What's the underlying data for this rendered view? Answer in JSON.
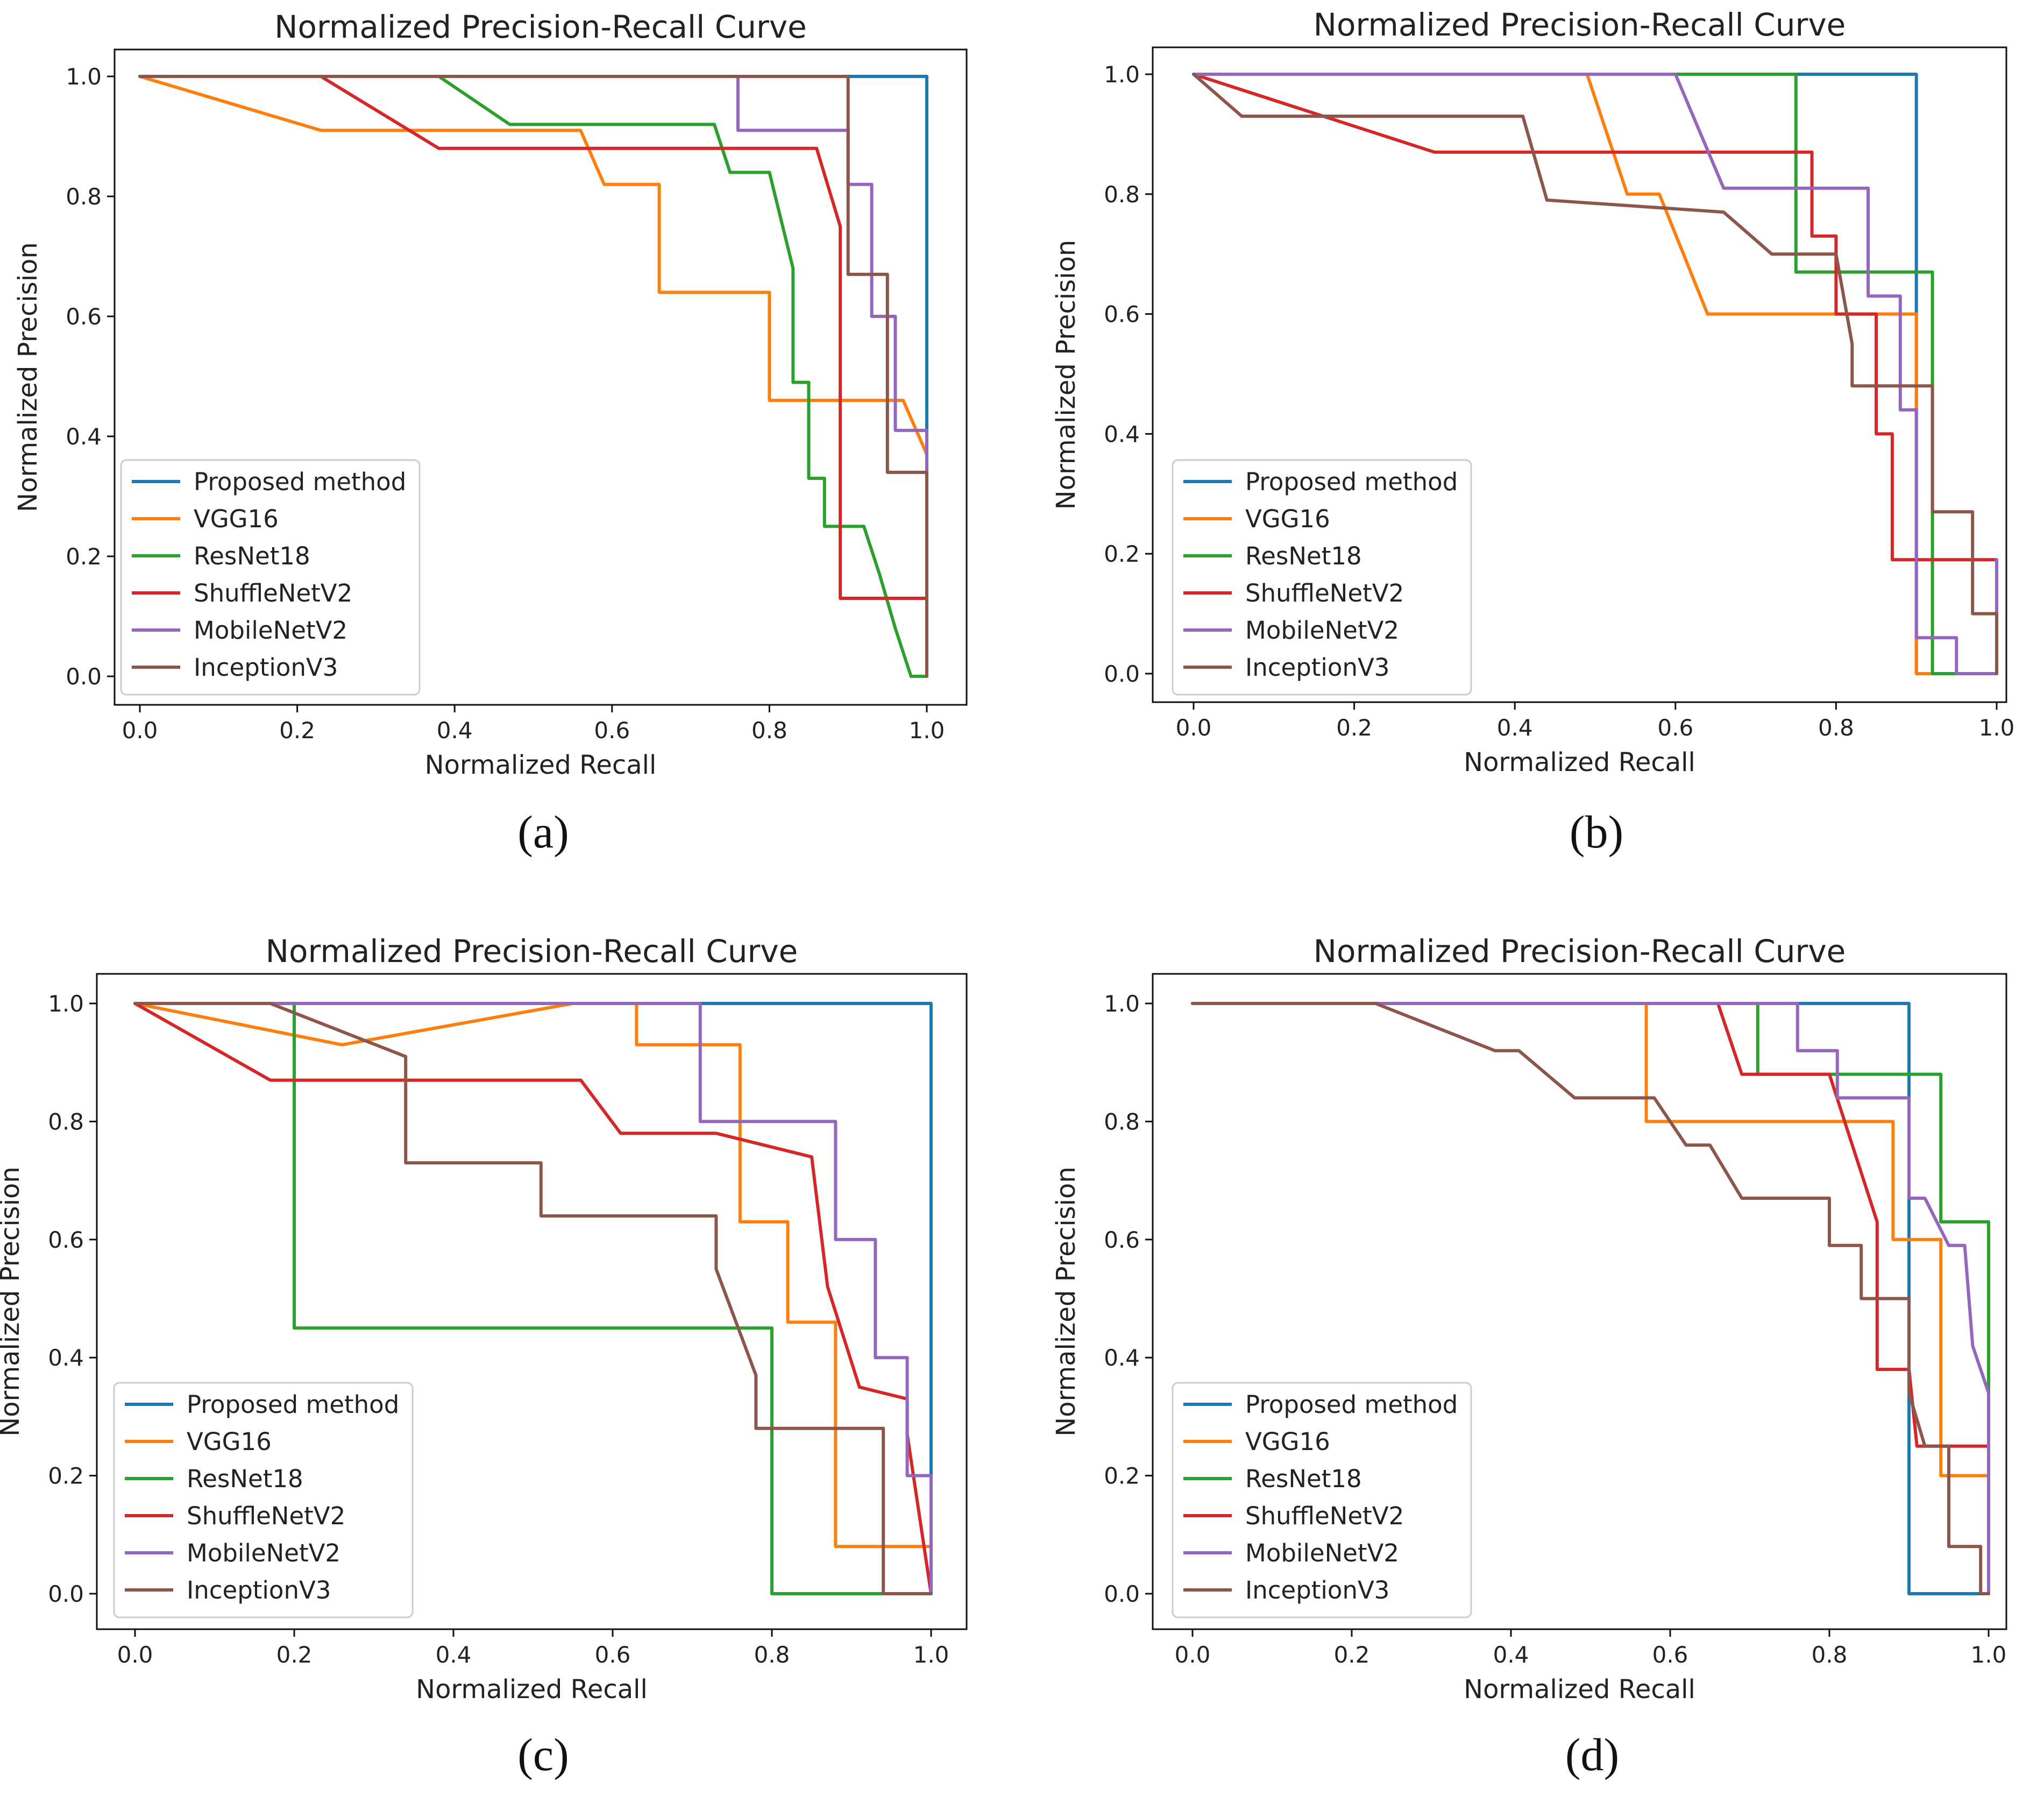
{
  "colors": {
    "Proposed method": "#1f77b4",
    "VGG16": "#ff7f0e",
    "ResNet18": "#2ca02c",
    "ShuffleNetV2": "#d62728",
    "MobileNetV2": "#9467bd",
    "InceptionV3": "#8c564b"
  },
  "chart_data": [
    {
      "type": "line",
      "caption": "(a)",
      "title": "Normalized Precision-Recall Curve",
      "xlabel": "Normalized Recall",
      "ylabel": "Normalized Precision",
      "xlim": [
        0,
        1
      ],
      "ylim": [
        0,
        1
      ],
      "xticks": [
        "0.0",
        "0.2",
        "0.4",
        "0.6",
        "0.8",
        "1.0"
      ],
      "yticks": [
        "0.0",
        "0.2",
        "0.4",
        "0.6",
        "0.8",
        "1.0"
      ],
      "legend": [
        "Proposed method",
        "VGG16",
        "ResNet18",
        "ShuffleNetV2",
        "MobileNetV2",
        "InceptionV3"
      ],
      "series": [
        {
          "name": "Proposed method",
          "x": [
            0,
            1,
            1
          ],
          "y": [
            1,
            1,
            0
          ]
        },
        {
          "name": "VGG16",
          "x": [
            0,
            0.23,
            0.56,
            0.59,
            0.66,
            0.66,
            0.8,
            0.8,
            0.97,
            1,
            1
          ],
          "y": [
            1,
            0.91,
            0.91,
            0.82,
            0.82,
            0.64,
            0.64,
            0.46,
            0.46,
            0.37,
            0
          ]
        },
        {
          "name": "ResNet18",
          "x": [
            0,
            0.38,
            0.47,
            0.73,
            0.75,
            0.8,
            0.83,
            0.83,
            0.85,
            0.85,
            0.87,
            0.87,
            0.92,
            0.94,
            0.94,
            0.96,
            0.96,
            0.98,
            1
          ],
          "y": [
            1,
            1,
            0.92,
            0.92,
            0.84,
            0.84,
            0.68,
            0.49,
            0.49,
            0.33,
            0.33,
            0.25,
            0.25,
            0.17,
            0.17,
            0.08,
            0.08,
            0,
            0
          ]
        },
        {
          "name": "ShuffleNetV2",
          "x": [
            0,
            0.23,
            0.38,
            0.86,
            0.89,
            0.89,
            1,
            1
          ],
          "y": [
            1,
            1,
            0.88,
            0.88,
            0.75,
            0.13,
            0.13,
            0
          ]
        },
        {
          "name": "MobileNetV2",
          "x": [
            0,
            0.76,
            0.76,
            0.9,
            0.9,
            0.93,
            0.93,
            0.96,
            0.96,
            1,
            1
          ],
          "y": [
            1,
            1,
            0.91,
            0.91,
            0.82,
            0.82,
            0.6,
            0.6,
            0.41,
            0.41,
            0
          ]
        },
        {
          "name": "InceptionV3",
          "x": [
            0,
            0.9,
            0.9,
            0.95,
            0.95,
            1,
            1
          ],
          "y": [
            1,
            1,
            0.67,
            0.67,
            0.34,
            0.34,
            0
          ]
        }
      ]
    },
    {
      "type": "line",
      "caption": "(b)",
      "title": "Normalized Precision-Recall Curve",
      "xlabel": "Normalized Recall",
      "ylabel": "Normalized Precision",
      "xlim": [
        0,
        1
      ],
      "ylim": [
        0,
        1
      ],
      "xticks": [
        "0.0",
        "0.2",
        "0.4",
        "0.6",
        "0.8",
        "1.0"
      ],
      "yticks": [
        "0.0",
        "0.2",
        "0.4",
        "0.6",
        "0.8",
        "1.0"
      ],
      "legend": [
        "Proposed method",
        "VGG16",
        "ResNet18",
        "ShuffleNetV2",
        "MobileNetV2",
        "InceptionV3"
      ],
      "series": [
        {
          "name": "Proposed method",
          "x": [
            0,
            0.9,
            0.9,
            1
          ],
          "y": [
            1,
            1,
            0,
            0
          ]
        },
        {
          "name": "VGG16",
          "x": [
            0,
            0.49,
            0.54,
            0.58,
            0.64,
            0.9,
            0.9,
            1
          ],
          "y": [
            1,
            1,
            0.8,
            0.8,
            0.6,
            0.6,
            0,
            0
          ]
        },
        {
          "name": "ResNet18",
          "x": [
            0,
            0.75,
            0.75,
            0.92,
            0.92,
            1,
            1
          ],
          "y": [
            1,
            1,
            0.67,
            0.67,
            0,
            0,
            0.19
          ]
        },
        {
          "name": "ShuffleNetV2",
          "x": [
            0,
            0.3,
            0.77,
            0.77,
            0.8,
            0.8,
            0.85,
            0.85,
            0.87,
            0.87,
            1,
            1
          ],
          "y": [
            1,
            0.87,
            0.87,
            0.73,
            0.73,
            0.6,
            0.6,
            0.4,
            0.4,
            0.19,
            0.19,
            0
          ]
        },
        {
          "name": "MobileNetV2",
          "x": [
            0,
            0.6,
            0.66,
            0.84,
            0.84,
            0.88,
            0.88,
            0.9,
            0.9,
            0.95,
            0.95,
            1,
            1
          ],
          "y": [
            1,
            1,
            0.81,
            0.81,
            0.63,
            0.63,
            0.44,
            0.44,
            0.06,
            0.06,
            0,
            0,
            0.19
          ]
        },
        {
          "name": "InceptionV3",
          "x": [
            0,
            0.06,
            0.41,
            0.44,
            0.66,
            0.72,
            0.8,
            0.82,
            0.82,
            0.92,
            0.92,
            0.97,
            0.97,
            1,
            1
          ],
          "y": [
            1,
            0.93,
            0.93,
            0.79,
            0.77,
            0.7,
            0.7,
            0.55,
            0.48,
            0.48,
            0.27,
            0.27,
            0.1,
            0.1,
            0
          ]
        }
      ]
    },
    {
      "type": "line",
      "caption": "(c)",
      "title": "Normalized Precision-Recall Curve",
      "xlabel": "Normalized Recall",
      "ylabel": "Normalized Precision",
      "xlim": [
        0,
        1
      ],
      "ylim": [
        0,
        1
      ],
      "xticks": [
        "0.0",
        "0.2",
        "0.4",
        "0.6",
        "0.8",
        "1.0"
      ],
      "yticks": [
        "0.0",
        "0.2",
        "0.4",
        "0.6",
        "0.8",
        "1.0"
      ],
      "legend": [
        "Proposed method",
        "VGG16",
        "ResNet18",
        "ShuffleNetV2",
        "MobileNetV2",
        "InceptionV3"
      ],
      "series": [
        {
          "name": "Proposed method",
          "x": [
            0,
            1,
            1
          ],
          "y": [
            1,
            1,
            0
          ]
        },
        {
          "name": "VGG16",
          "x": [
            0,
            0.26,
            0.55,
            0.63,
            0.63,
            0.76,
            0.76,
            0.82,
            0.82,
            0.88,
            0.88,
            1,
            1
          ],
          "y": [
            1,
            0.93,
            1,
            1,
            0.93,
            0.93,
            0.63,
            0.63,
            0.46,
            0.46,
            0.08,
            0.08,
            0
          ]
        },
        {
          "name": "ResNet18",
          "x": [
            0,
            0.2,
            0.2,
            0.8,
            0.8,
            1
          ],
          "y": [
            1,
            1,
            0.45,
            0.45,
            0,
            0
          ]
        },
        {
          "name": "ShuffleNetV2",
          "x": [
            0,
            0.17,
            0.56,
            0.61,
            0.73,
            0.85,
            0.87,
            0.91,
            0.97,
            0.97,
            1
          ],
          "y": [
            1,
            0.87,
            0.87,
            0.78,
            0.78,
            0.74,
            0.52,
            0.35,
            0.33,
            0.27,
            0
          ]
        },
        {
          "name": "MobileNetV2",
          "x": [
            0,
            0.71,
            0.71,
            0.88,
            0.88,
            0.93,
            0.93,
            0.97,
            0.97,
            1,
            1
          ],
          "y": [
            1,
            1,
            0.8,
            0.8,
            0.6,
            0.6,
            0.4,
            0.4,
            0.2,
            0.2,
            0
          ]
        },
        {
          "name": "InceptionV3",
          "x": [
            0,
            0.17,
            0.34,
            0.34,
            0.51,
            0.51,
            0.73,
            0.73,
            0.78,
            0.78,
            0.94,
            0.94,
            1
          ],
          "y": [
            1,
            1,
            0.91,
            0.73,
            0.73,
            0.64,
            0.64,
            0.55,
            0.37,
            0.28,
            0.28,
            0,
            0
          ]
        }
      ]
    },
    {
      "type": "line",
      "caption": "(d)",
      "title": "Normalized Precision-Recall Curve",
      "xlabel": "Normalized Recall",
      "ylabel": "Normalized Precision",
      "xlim": [
        0,
        1
      ],
      "ylim": [
        0,
        1
      ],
      "xticks": [
        "0.0",
        "0.2",
        "0.4",
        "0.6",
        "0.8",
        "1.0"
      ],
      "yticks": [
        "0.0",
        "0.2",
        "0.4",
        "0.6",
        "0.8",
        "1.0"
      ],
      "legend": [
        "Proposed method",
        "VGG16",
        "ResNet18",
        "ShuffleNetV2",
        "MobileNetV2",
        "InceptionV3"
      ],
      "series": [
        {
          "name": "Proposed method",
          "x": [
            0,
            0.9,
            0.9,
            1
          ],
          "y": [
            1,
            1,
            0,
            0
          ]
        },
        {
          "name": "VGG16",
          "x": [
            0,
            0.57,
            0.57,
            0.88,
            0.88,
            0.94,
            0.94,
            1,
            1
          ],
          "y": [
            1,
            1,
            0.8,
            0.8,
            0.6,
            0.6,
            0.2,
            0.2,
            0
          ]
        },
        {
          "name": "ResNet18",
          "x": [
            0,
            0.71,
            0.71,
            0.94,
            0.94,
            1,
            1
          ],
          "y": [
            1,
            1,
            0.88,
            0.88,
            0.63,
            0.63,
            0
          ]
        },
        {
          "name": "ShuffleNetV2",
          "x": [
            0,
            0.66,
            0.69,
            0.8,
            0.86,
            0.86,
            0.9,
            0.91,
            1,
            1
          ],
          "y": [
            1,
            1,
            0.88,
            0.88,
            0.63,
            0.38,
            0.38,
            0.25,
            0.25,
            0
          ]
        },
        {
          "name": "MobileNetV2",
          "x": [
            0,
            0.76,
            0.76,
            0.81,
            0.81,
            0.9,
            0.9,
            0.92,
            0.95,
            0.97,
            0.98,
            1,
            1
          ],
          "y": [
            1,
            1,
            0.92,
            0.92,
            0.84,
            0.84,
            0.67,
            0.67,
            0.59,
            0.59,
            0.42,
            0.34,
            0
          ]
        },
        {
          "name": "InceptionV3",
          "x": [
            0,
            0.23,
            0.38,
            0.41,
            0.48,
            0.58,
            0.62,
            0.65,
            0.69,
            0.8,
            0.8,
            0.84,
            0.84,
            0.9,
            0.9,
            0.92,
            0.95,
            0.95,
            0.99,
            0.99,
            1
          ],
          "y": [
            1,
            1,
            0.92,
            0.92,
            0.84,
            0.84,
            0.76,
            0.76,
            0.67,
            0.67,
            0.59,
            0.59,
            0.5,
            0.5,
            0.34,
            0.25,
            0.25,
            0.08,
            0.08,
            0,
            0
          ]
        }
      ]
    }
  ]
}
